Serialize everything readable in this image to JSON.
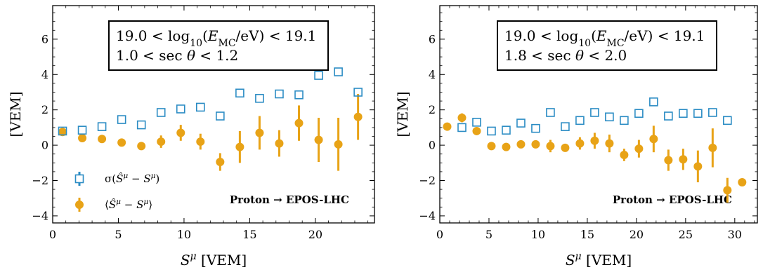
{
  "colors": {
    "sigma": "#2b8cc4",
    "mean": "#e8a317",
    "frame": "#000000"
  },
  "chart_data": [
    {
      "type": "scatter",
      "title": "",
      "xlabel": "S^μ [VEM]",
      "ylabel": "[VEM]",
      "xlim": [
        0,
        24.5
      ],
      "ylim": [
        -4.4,
        7.9
      ],
      "xticks": [
        0,
        5,
        10,
        15,
        20
      ],
      "yticks": [
        -4,
        -2,
        0,
        2,
        4,
        6
      ],
      "grid": false,
      "legend_position": "lower-left",
      "annotation_box": [
        "19.0 < log₁₀(E_MC/eV) < 19.1",
        "1.0 < sec θ < 1.2"
      ],
      "note": "Proton → EPOS-LHC",
      "series": [
        {
          "name": "σ(Ŝ^μ − S^μ)",
          "marker": "open-square",
          "x": [
            0.75,
            2.25,
            3.75,
            5.25,
            6.75,
            8.25,
            9.75,
            11.25,
            12.75,
            14.25,
            15.75,
            17.25,
            18.75,
            20.25,
            21.75,
            23.25
          ],
          "y": [
            0.8,
            0.85,
            1.05,
            1.45,
            1.15,
            1.85,
            2.05,
            2.15,
            1.65,
            2.95,
            2.65,
            2.9,
            2.85,
            3.95,
            4.15,
            3.0
          ],
          "yerr": [
            0.05,
            0.05,
            0.05,
            0.05,
            0.05,
            0.05,
            0.05,
            0.05,
            0.05,
            0.05,
            0.05,
            0.05,
            0.05,
            0.05,
            0.05,
            0.05
          ]
        },
        {
          "name": "⟨Ŝ^μ − S^μ⟩",
          "marker": "filled-circle",
          "x": [
            0.75,
            2.25,
            3.75,
            5.25,
            6.75,
            8.25,
            9.75,
            11.25,
            12.75,
            14.25,
            15.75,
            17.25,
            18.75,
            20.25,
            21.75,
            23.25
          ],
          "y": [
            0.75,
            0.4,
            0.35,
            0.15,
            -0.05,
            0.2,
            0.7,
            0.2,
            -0.95,
            -0.1,
            0.7,
            0.1,
            1.25,
            0.3,
            0.05,
            1.6
          ],
          "yerr": [
            0.1,
            0.1,
            0.1,
            0.1,
            0.15,
            0.35,
            0.45,
            0.45,
            0.5,
            0.9,
            0.95,
            0.75,
            1.0,
            1.25,
            1.5,
            1.3
          ]
        }
      ]
    },
    {
      "type": "scatter",
      "title": "",
      "xlabel": "S^μ [VEM]",
      "ylabel": "[VEM]",
      "xlim": [
        0,
        32.3
      ],
      "ylim": [
        -4.4,
        7.9
      ],
      "xticks": [
        0,
        5,
        10,
        15,
        20,
        25,
        30
      ],
      "yticks": [
        -4,
        -2,
        0,
        2,
        4,
        6
      ],
      "grid": false,
      "legend_position": "none",
      "annotation_box": [
        "19.0 < log₁₀(E_MC/eV) < 19.1",
        "1.8 < sec θ < 2.0"
      ],
      "note": "Proton → EPOS-LHC",
      "series": [
        {
          "name": "σ(Ŝ^μ − S^μ)",
          "marker": "open-square",
          "x": [
            2.25,
            3.75,
            5.25,
            6.75,
            8.25,
            9.75,
            11.25,
            12.75,
            14.25,
            15.75,
            17.25,
            18.75,
            20.25,
            21.75,
            23.25,
            24.75,
            26.25,
            27.75,
            29.25
          ],
          "y": [
            1.0,
            1.3,
            0.8,
            0.85,
            1.25,
            0.95,
            1.85,
            1.05,
            1.4,
            1.85,
            1.6,
            1.4,
            1.8,
            2.45,
            1.65,
            1.8,
            1.8,
            1.85,
            1.4
          ],
          "yerr": [
            0.05,
            0.05,
            0.05,
            0.05,
            0.05,
            0.05,
            0.05,
            0.05,
            0.05,
            0.05,
            0.05,
            0.05,
            0.05,
            0.05,
            0.05,
            0.05,
            0.05,
            0.05,
            0.05
          ]
        },
        {
          "name": "⟨Ŝ^μ − S^μ⟩",
          "marker": "filled-circle",
          "x": [
            0.75,
            2.25,
            3.75,
            5.25,
            6.75,
            8.25,
            9.75,
            11.25,
            12.75,
            14.25,
            15.75,
            17.25,
            18.75,
            20.25,
            21.75,
            23.25,
            24.75,
            26.25,
            27.75,
            29.25,
            30.75
          ],
          "y": [
            1.05,
            1.55,
            0.8,
            -0.05,
            -0.1,
            0.05,
            0.05,
            -0.05,
            -0.15,
            0.1,
            0.25,
            0.1,
            -0.55,
            -0.2,
            0.35,
            -0.85,
            -0.8,
            -1.2,
            -0.15,
            -2.55,
            -2.1
          ],
          "yerr": [
            0.05,
            0.25,
            0.1,
            0.1,
            0.1,
            0.1,
            0.15,
            0.35,
            0.15,
            0.35,
            0.45,
            0.5,
            0.35,
            0.5,
            0.75,
            0.6,
            0.6,
            0.9,
            1.1,
            0.7,
            0.05
          ]
        }
      ]
    }
  ]
}
